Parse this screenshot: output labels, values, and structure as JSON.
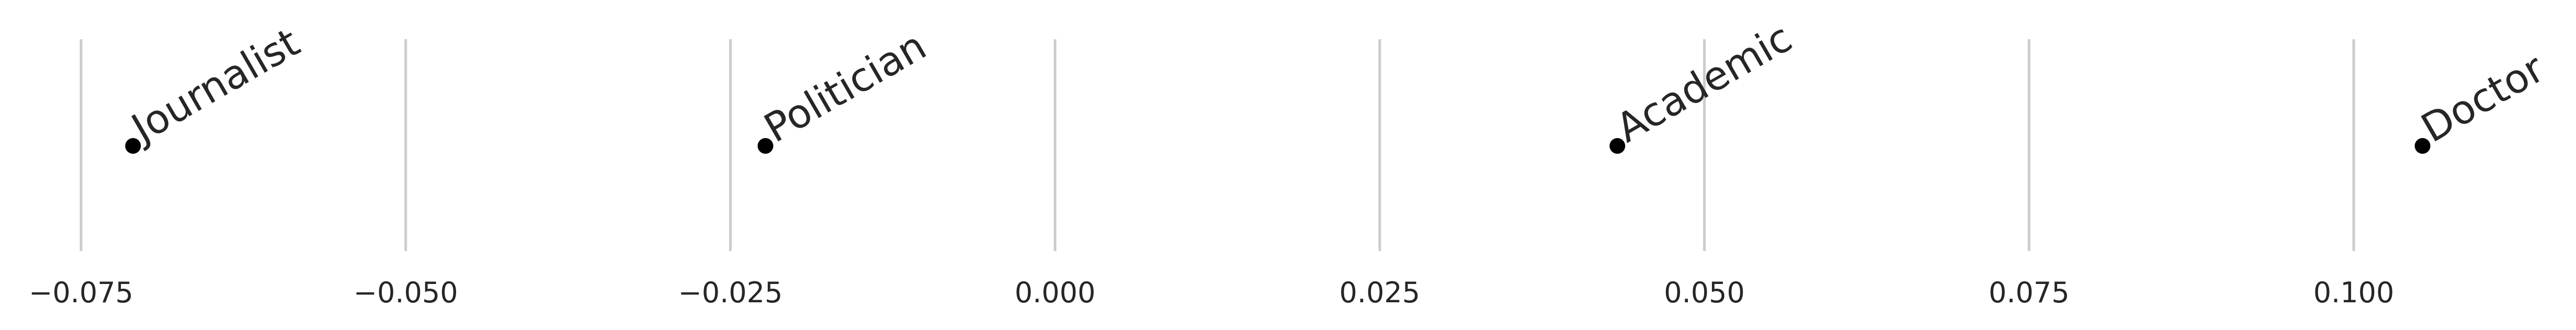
{
  "chart_data": {
    "type": "scatter",
    "title": "",
    "xlabel": "",
    "ylabel": "",
    "xlim": [
      -0.0755,
      0.113
    ],
    "xticks": [
      -0.075,
      -0.05,
      -0.025,
      0.0,
      0.025,
      0.05,
      0.075,
      0.1
    ],
    "xtick_labels": [
      "−0.075",
      "−0.050",
      "−0.025",
      "0.000",
      "0.025",
      "0.050",
      "0.075",
      "0.100"
    ],
    "grid": "vertical",
    "points": [
      {
        "label": "Journalist",
        "x": -0.071
      },
      {
        "label": "Politician",
        "x": -0.0223
      },
      {
        "label": "Academic",
        "x": 0.0433
      },
      {
        "label": "Doctor",
        "x": 0.1053
      }
    ],
    "colors": {
      "point": "#000000",
      "grid": "#cccccc",
      "text": "#262626"
    }
  }
}
